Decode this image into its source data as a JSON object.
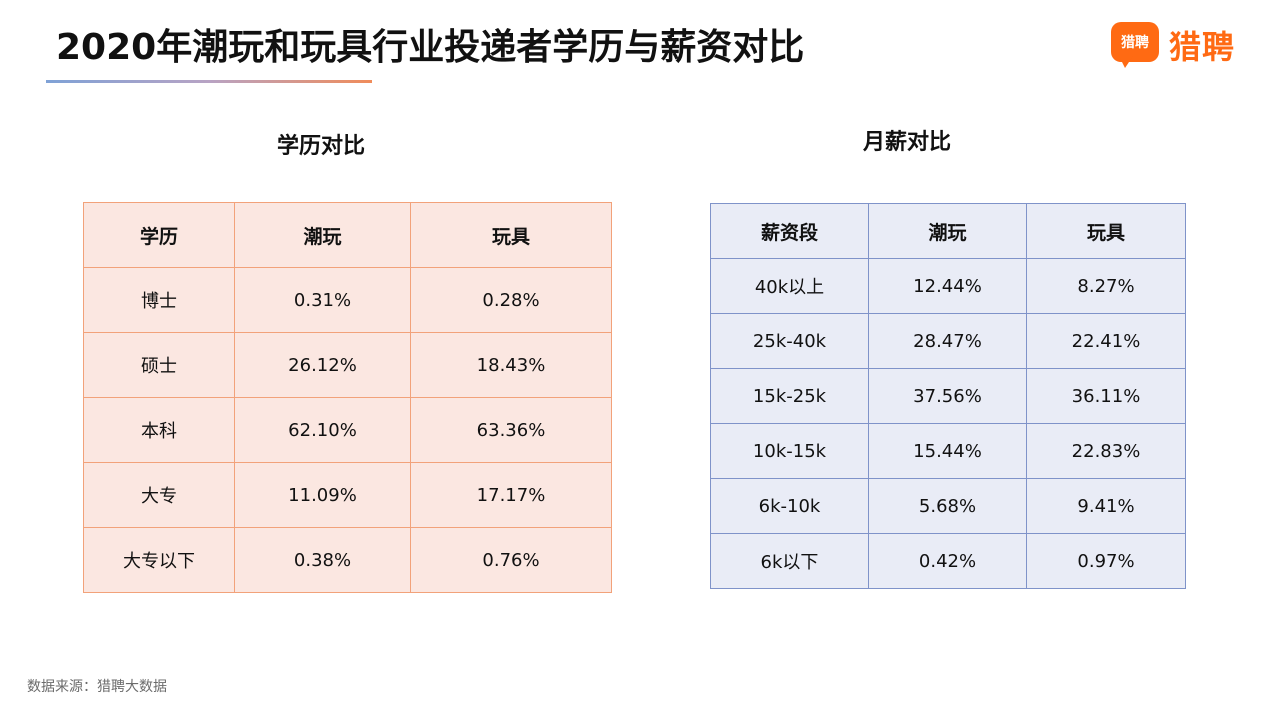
{
  "title": "2020年潮玩和玩具行业投递者学历与薪资对比",
  "logo": {
    "mark_text": "猎聘",
    "text": "猎聘",
    "brand_color": "#ff6a13"
  },
  "education": {
    "section_title": "学历对比",
    "headers": [
      "学历",
      "潮玩",
      "玩具"
    ],
    "rows": [
      [
        "博士",
        "0.31%",
        "0.28%"
      ],
      [
        "硕士",
        "26.12%",
        "18.43%"
      ],
      [
        "本科",
        "62.10%",
        "63.36%"
      ],
      [
        "大专",
        "11.09%",
        "17.17%"
      ],
      [
        "大专以下",
        "0.38%",
        "0.76%"
      ]
    ]
  },
  "salary": {
    "section_title": "月薪对比",
    "headers": [
      "薪资段",
      "潮玩",
      "玩具"
    ],
    "rows": [
      [
        "40k以上",
        "12.44%",
        "8.27%"
      ],
      [
        "25k-40k",
        "28.47%",
        "22.41%"
      ],
      [
        "15k-25k",
        "37.56%",
        "36.11%"
      ],
      [
        "10k-15k",
        "15.44%",
        "22.83%"
      ],
      [
        "6k-10k",
        "5.68%",
        "9.41%"
      ],
      [
        "6k以下",
        "0.42%",
        "0.97%"
      ]
    ]
  },
  "source": "数据来源：猎聘大数据"
}
